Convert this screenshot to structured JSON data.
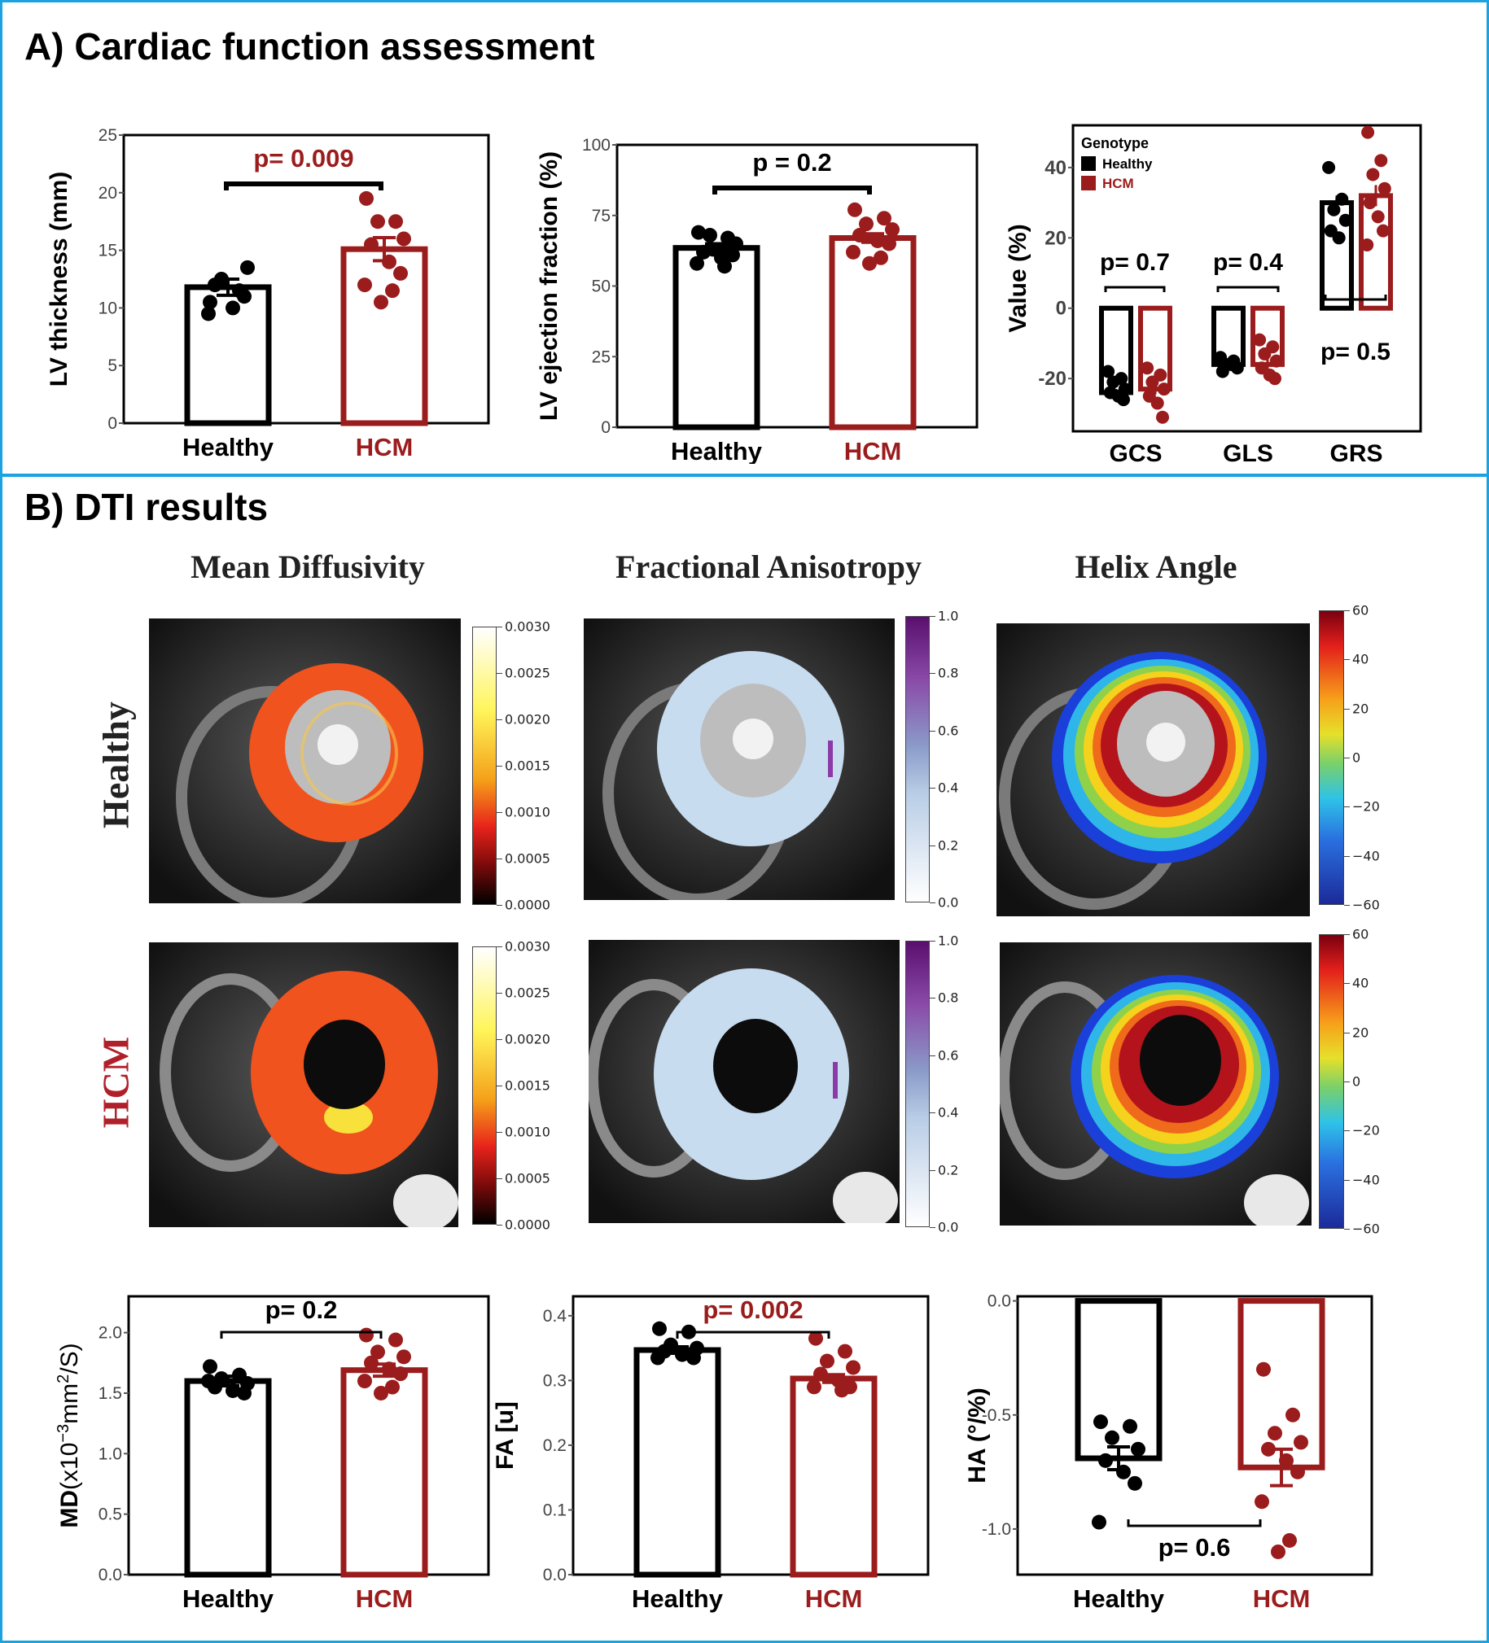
{
  "panel_a": {
    "title": "A)  Cardiac function assessment"
  },
  "panel_b": {
    "title": "B) DTI results",
    "map_titles": [
      "Mean Diffusivity",
      "Fractional Anisotropy",
      "Helix Angle"
    ],
    "row_labels": [
      "Healthy",
      "HCM"
    ],
    "colorbars": {
      "md": {
        "ticks": [
          "0.0030",
          "0.0025",
          "0.0020",
          "0.0015",
          "0.0010",
          "0.0005",
          "0.0000"
        ]
      },
      "fa": {
        "ticks": [
          "1.0",
          "0.8",
          "0.6",
          "0.4",
          "0.2",
          "0.0"
        ]
      },
      "ha": {
        "ticks": [
          "60",
          "40",
          "20",
          "0",
          "−20",
          "−40",
          "−60"
        ]
      }
    }
  },
  "colors": {
    "healthy": "#000000",
    "hcm": "#9b1c1c",
    "frame": "#1aa3e0"
  },
  "chart_data": [
    {
      "id": "lv_thickness",
      "type": "bar",
      "categories": [
        "Healthy",
        "HCM"
      ],
      "values": [
        11.8,
        15.1
      ],
      "errors": [
        0.7,
        1.0
      ],
      "points": [
        [
          10.5,
          11.5,
          12.5,
          13.5,
          12,
          10,
          11,
          9.5
        ],
        [
          19.5,
          17.5,
          17.5,
          16,
          15.5,
          14,
          13,
          12,
          11.5,
          10.5
        ]
      ],
      "ylabel": "LV thickness (mm)",
      "ylim": [
        0,
        25
      ],
      "yticks": [
        0,
        5,
        10,
        15,
        20,
        25
      ],
      "annotation": "p= 0.009",
      "annotation_color": "hcm"
    },
    {
      "id": "lv_ef",
      "type": "bar",
      "categories": [
        "Healthy",
        "HCM"
      ],
      "values": [
        63.5,
        67
      ],
      "errors": [
        1.5,
        1.5
      ],
      "points": [
        [
          69,
          67,
          68,
          65,
          62,
          60,
          61,
          58,
          57,
          63
        ],
        [
          77,
          74,
          72,
          70,
          68,
          66,
          65,
          62,
          60,
          58
        ]
      ],
      "ylabel": "LV ejection fraction (%)",
      "ylim": [
        0,
        100
      ],
      "yticks": [
        0,
        25,
        50,
        75,
        100
      ],
      "annotation": "p = 0.2",
      "annotation_color": "healthy"
    },
    {
      "id": "strain",
      "type": "bar",
      "categories": [
        "GCS",
        "GLS",
        "GRS"
      ],
      "series": [
        {
          "name": "Healthy",
          "values": [
            -24,
            -16,
            30
          ],
          "errors": [
            1,
            1,
            2
          ]
        },
        {
          "name": "HCM",
          "values": [
            -23,
            -16,
            32
          ],
          "errors": [
            1.5,
            1.5,
            3
          ]
        }
      ],
      "points": {
        "Healthy": [
          [
            -18,
            -20,
            -21,
            -23,
            -24,
            -25,
            -26
          ],
          [
            -14,
            -15,
            -16,
            -17,
            -18,
            -16
          ],
          [
            40,
            31,
            28,
            25,
            22,
            20
          ]
        ],
        "HCM": [
          [
            -17,
            -19,
            -21,
            -23,
            -25,
            -27,
            -31
          ],
          [
            -9,
            -11,
            -13,
            -15,
            -17,
            -19,
            -20
          ],
          [
            50,
            42,
            38,
            34,
            30,
            26,
            22,
            18
          ]
        ]
      },
      "legend_title": "Genotype",
      "legend_position": "top-left",
      "ylabel": "Value (%)",
      "ylim": [
        -35,
        52
      ],
      "yticks": [
        -20,
        0,
        20,
        40
      ],
      "annotations": [
        "p= 0.7",
        "p= 0.4",
        "p= 0.5"
      ]
    },
    {
      "id": "md",
      "type": "bar",
      "categories": [
        "Healthy",
        "HCM"
      ],
      "values": [
        1.6,
        1.69
      ],
      "errors": [
        0.04,
        0.05
      ],
      "points": [
        [
          1.72,
          1.65,
          1.62,
          1.58,
          1.55,
          1.52,
          1.5,
          1.6
        ],
        [
          1.98,
          1.94,
          1.84,
          1.8,
          1.75,
          1.7,
          1.66,
          1.6,
          1.55,
          1.5
        ]
      ],
      "ylabel_main": "MD",
      "ylabel_unit": "(x10",
      "ylabel_exp": "−3",
      "ylabel_rest": "mm",
      "ylabel_sq": "2",
      "ylabel_end": "/S)",
      "ylim": [
        0,
        2.3
      ],
      "yticks": [
        0,
        0.5,
        1.0,
        1.5,
        2.0
      ],
      "ytick_labels": [
        "0.0",
        "0.5",
        "1.0",
        "1.5",
        "2.0"
      ],
      "annotation": "p= 0.2",
      "annotation_color": "healthy"
    },
    {
      "id": "fa",
      "type": "bar",
      "categories": [
        "Healthy",
        "HCM"
      ],
      "values": [
        0.347,
        0.303
      ],
      "errors": [
        0.005,
        0.006
      ],
      "points": [
        [
          0.38,
          0.375,
          0.355,
          0.35,
          0.345,
          0.34,
          0.335,
          0.335
        ],
        [
          0.365,
          0.345,
          0.33,
          0.32,
          0.31,
          0.3,
          0.29,
          0.29,
          0.285
        ]
      ],
      "ylabel": "FA [u]",
      "ylim": [
        0,
        0.43
      ],
      "yticks": [
        0,
        0.1,
        0.2,
        0.3,
        0.4
      ],
      "ytick_labels": [
        "0.0",
        "0.1",
        "0.2",
        "0.3",
        "0.4"
      ],
      "annotation": "p= 0.002",
      "annotation_color": "hcm"
    },
    {
      "id": "ha",
      "type": "bar",
      "categories": [
        "Healthy",
        "HCM"
      ],
      "values": [
        -0.69,
        -0.73
      ],
      "errors": [
        0.05,
        0.08
      ],
      "points": [
        [
          -0.53,
          -0.55,
          -0.6,
          -0.65,
          -0.7,
          -0.75,
          -0.8,
          -0.97
        ],
        [
          -0.3,
          -0.5,
          -0.58,
          -0.62,
          -0.65,
          -0.7,
          -0.75,
          -0.88,
          -1.05,
          -1.1
        ]
      ],
      "ylabel": "HA (°/%)",
      "ylim": [
        -1.2,
        0.02
      ],
      "yticks": [
        -1.0,
        -0.5,
        0.0
      ],
      "ytick_labels": [
        "-1.0",
        "-0.5",
        "0.0"
      ],
      "annotation": "p= 0.6",
      "annotation_color": "healthy"
    }
  ]
}
